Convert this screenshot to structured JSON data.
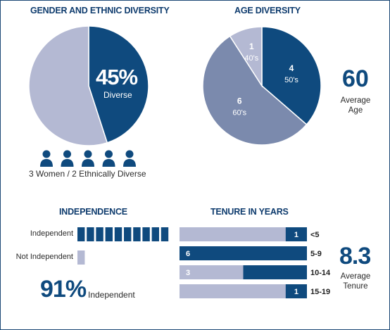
{
  "colors": {
    "navy": "#0f4a7e",
    "slate": "#7b8aad",
    "lavender": "#b4b9d3",
    "text": "#2b2b2b"
  },
  "gender": {
    "title": "GENDER AND ETHNIC DIVERSITY",
    "percent_label": "45%",
    "center_label": "Diverse",
    "caption": "3 Women / 2 Ethnically Diverse",
    "people_count": 5,
    "icon": "person-icon"
  },
  "age": {
    "title": "AGE DIVERSITY",
    "average_value": "60",
    "average_label_1": "Average",
    "average_label_2": "Age"
  },
  "independence": {
    "title": "INDEPENDENCE",
    "independent_label": "Independent",
    "not_independent_label": "Not Independent",
    "percent": "91%",
    "percent_caption": "Independent"
  },
  "tenure": {
    "title": "TENURE IN YEARS",
    "average_value": "8.3",
    "average_label_1": "Average",
    "average_label_2": "Tenure"
  },
  "chart_data": [
    {
      "type": "pie",
      "title": "GENDER AND ETHNIC DIVERSITY",
      "slices": [
        {
          "label": "Diverse",
          "value": 45,
          "color": "#0f4a7e"
        },
        {
          "label": "",
          "value": 55,
          "color": "#b4b9d3"
        }
      ]
    },
    {
      "type": "pie",
      "title": "AGE DIVERSITY",
      "slices": [
        {
          "label": "50's",
          "value": 4,
          "color": "#0f4a7e"
        },
        {
          "label": "60's",
          "value": 6,
          "color": "#7b8aad"
        },
        {
          "label": "40's",
          "value": 1,
          "color": "#b4b9d3"
        }
      ]
    },
    {
      "type": "bar",
      "title": "INDEPENDENCE",
      "categories": [
        "Independent",
        "Not Independent"
      ],
      "values": [
        10,
        1
      ]
    },
    {
      "type": "bar",
      "title": "TENURE IN YEARS",
      "categories": [
        "<5",
        "5-9",
        "10-14",
        "15-19"
      ],
      "values": [
        1,
        6,
        3,
        1
      ],
      "max": 6
    }
  ]
}
